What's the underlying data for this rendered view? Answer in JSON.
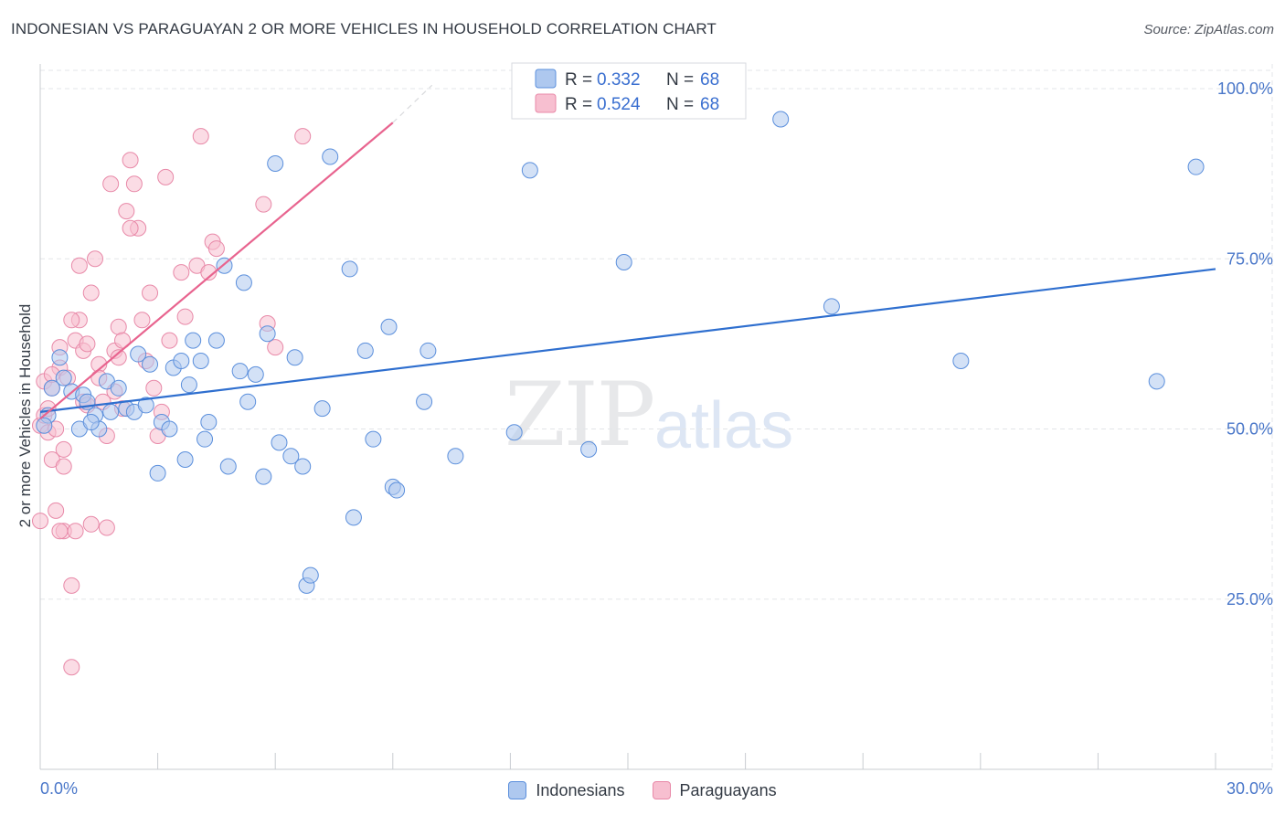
{
  "header": {
    "title": "INDONESIAN VS PARAGUAYAN 2 OR MORE VEHICLES IN HOUSEHOLD CORRELATION CHART",
    "source": "Source: ZipAtlas.com"
  },
  "watermark": {
    "zip": "ZIP",
    "atlas": "atlas"
  },
  "legend": {
    "indonesians": {
      "r_label": "R =",
      "r_value": "0.332",
      "n_label": "N =",
      "n_value": "68"
    },
    "paraguayans": {
      "r_label": "R =",
      "r_value": "0.524",
      "n_label": "N =",
      "n_value": "68"
    }
  },
  "bottom_legend": {
    "indonesians": "Indonesians",
    "paraguayans": "Paraguayans"
  },
  "colors": {
    "blue_fill": "#aec8ef",
    "blue_stroke": "#5b8fdc",
    "blue_line": "#2f6fcf",
    "pink_fill": "#f7bfd0",
    "pink_stroke": "#e889a8",
    "pink_line": "#e8648f",
    "grid": "#e3e5e8",
    "tick_text": "#4a77c9"
  },
  "chart_data": {
    "type": "scatter",
    "title": "INDONESIAN VS PARAGUAYAN 2 OR MORE VEHICLES IN HOUSEHOLD CORRELATION CHART",
    "xlabel": "",
    "ylabel": "2 or more Vehicles in Household",
    "xlim": [
      0,
      30
    ],
    "ylim": [
      0,
      102
    ],
    "x_tick_labels": [
      "0.0%",
      "30.0%"
    ],
    "y_ticks": [
      25,
      50,
      75,
      100
    ],
    "y_tick_labels": [
      "25.0%",
      "50.0%",
      "75.0%",
      "100.0%"
    ],
    "grid": true,
    "legend_position": "top-center",
    "series": [
      {
        "name": "Indonesians",
        "r": 0.332,
        "n": 68,
        "trend": {
          "x": [
            0,
            30
          ],
          "y": [
            52.5,
            73.5
          ]
        },
        "points": [
          [
            0.2,
            52.0
          ],
          [
            0.3,
            56.0
          ],
          [
            0.5,
            60.5
          ],
          [
            0.6,
            57.5
          ],
          [
            0.8,
            55.5
          ],
          [
            1.0,
            50.0
          ],
          [
            1.1,
            55.0
          ],
          [
            1.2,
            54.0
          ],
          [
            1.4,
            52.0
          ],
          [
            1.5,
            50.0
          ],
          [
            1.7,
            57.0
          ],
          [
            1.8,
            52.5
          ],
          [
            2.0,
            56.0
          ],
          [
            2.2,
            53.0
          ],
          [
            2.4,
            52.5
          ],
          [
            2.5,
            61.0
          ],
          [
            2.7,
            53.5
          ],
          [
            2.8,
            59.5
          ],
          [
            3.0,
            43.5
          ],
          [
            3.1,
            51.0
          ],
          [
            3.3,
            50.0
          ],
          [
            3.4,
            59.0
          ],
          [
            3.6,
            60.0
          ],
          [
            3.7,
            45.5
          ],
          [
            3.8,
            56.5
          ],
          [
            3.9,
            63.0
          ],
          [
            4.1,
            60.0
          ],
          [
            4.2,
            48.5
          ],
          [
            4.3,
            51.0
          ],
          [
            4.5,
            63.0
          ],
          [
            4.7,
            74.0
          ],
          [
            4.8,
            44.5
          ],
          [
            5.1,
            58.5
          ],
          [
            5.2,
            71.5
          ],
          [
            5.3,
            54.0
          ],
          [
            5.5,
            58.0
          ],
          [
            5.7,
            43.0
          ],
          [
            5.8,
            64.0
          ],
          [
            6.0,
            89.0
          ],
          [
            6.1,
            48.0
          ],
          [
            6.4,
            46.0
          ],
          [
            6.5,
            60.5
          ],
          [
            6.7,
            44.5
          ],
          [
            6.8,
            27.0
          ],
          [
            6.9,
            28.5
          ],
          [
            7.2,
            53.0
          ],
          [
            7.4,
            90.0
          ],
          [
            7.9,
            73.5
          ],
          [
            8.0,
            37.0
          ],
          [
            8.3,
            61.5
          ],
          [
            8.5,
            48.5
          ],
          [
            8.9,
            65.0
          ],
          [
            9.0,
            41.5
          ],
          [
            9.1,
            41.0
          ],
          [
            9.8,
            54.0
          ],
          [
            9.9,
            61.5
          ],
          [
            10.6,
            46.0
          ],
          [
            12.1,
            49.5
          ],
          [
            12.5,
            88.0
          ],
          [
            14.0,
            47.0
          ],
          [
            14.9,
            74.5
          ],
          [
            18.9,
            95.5
          ],
          [
            20.2,
            68.0
          ],
          [
            23.5,
            60.0
          ],
          [
            28.5,
            57.0
          ],
          [
            29.5,
            88.5
          ],
          [
            0.1,
            50.5
          ],
          [
            1.3,
            51.0
          ]
        ]
      },
      {
        "name": "Paraguayans",
        "r": 0.524,
        "n": 68,
        "trend": {
          "x": [
            0,
            9
          ],
          "y": [
            51.5,
            95.0
          ]
        },
        "trend_dashed": {
          "x": [
            9,
            10
          ],
          "y": [
            95.0,
            100.5
          ]
        },
        "points": [
          [
            0.0,
            50.5
          ],
          [
            0.0,
            36.5
          ],
          [
            0.1,
            57.0
          ],
          [
            0.1,
            52.0
          ],
          [
            0.2,
            49.5
          ],
          [
            0.3,
            45.5
          ],
          [
            0.3,
            56.0
          ],
          [
            0.4,
            38.0
          ],
          [
            0.5,
            62.0
          ],
          [
            0.5,
            59.0
          ],
          [
            0.6,
            35.0
          ],
          [
            0.6,
            47.0
          ],
          [
            0.7,
            57.5
          ],
          [
            0.8,
            27.0
          ],
          [
            0.8,
            15.0
          ],
          [
            0.9,
            63.0
          ],
          [
            1.0,
            66.0
          ],
          [
            1.0,
            74.0
          ],
          [
            1.1,
            61.5
          ],
          [
            1.2,
            62.5
          ],
          [
            1.3,
            70.0
          ],
          [
            1.4,
            75.0
          ],
          [
            1.5,
            59.5
          ],
          [
            1.6,
            54.0
          ],
          [
            1.7,
            49.0
          ],
          [
            1.8,
            86.0
          ],
          [
            1.9,
            61.5
          ],
          [
            2.0,
            65.0
          ],
          [
            2.1,
            63.0
          ],
          [
            2.2,
            82.0
          ],
          [
            2.3,
            89.5
          ],
          [
            2.4,
            86.0
          ],
          [
            2.5,
            79.5
          ],
          [
            2.6,
            66.0
          ],
          [
            2.7,
            60.0
          ],
          [
            2.8,
            70.0
          ],
          [
            2.9,
            56.0
          ],
          [
            3.0,
            49.0
          ],
          [
            3.1,
            52.5
          ],
          [
            3.2,
            87.0
          ],
          [
            3.3,
            63.0
          ],
          [
            3.6,
            73.0
          ],
          [
            3.7,
            66.5
          ],
          [
            4.0,
            74.0
          ],
          [
            4.1,
            93.0
          ],
          [
            4.3,
            73.0
          ],
          [
            4.4,
            77.5
          ],
          [
            4.5,
            76.5
          ],
          [
            5.7,
            83.0
          ],
          [
            5.8,
            65.5
          ],
          [
            6.0,
            62.0
          ],
          [
            6.7,
            93.0
          ],
          [
            0.2,
            53.0
          ],
          [
            0.4,
            50.0
          ],
          [
            0.6,
            44.5
          ],
          [
            0.9,
            35.0
          ],
          [
            1.1,
            54.0
          ],
          [
            1.3,
            36.0
          ],
          [
            1.5,
            57.5
          ],
          [
            1.7,
            35.5
          ],
          [
            1.9,
            55.5
          ],
          [
            2.1,
            53.0
          ],
          [
            2.3,
            79.5
          ],
          [
            1.2,
            53.5
          ],
          [
            0.8,
            66.0
          ],
          [
            0.3,
            58.0
          ],
          [
            0.5,
            35.0
          ],
          [
            2.0,
            60.5
          ]
        ]
      }
    ]
  }
}
